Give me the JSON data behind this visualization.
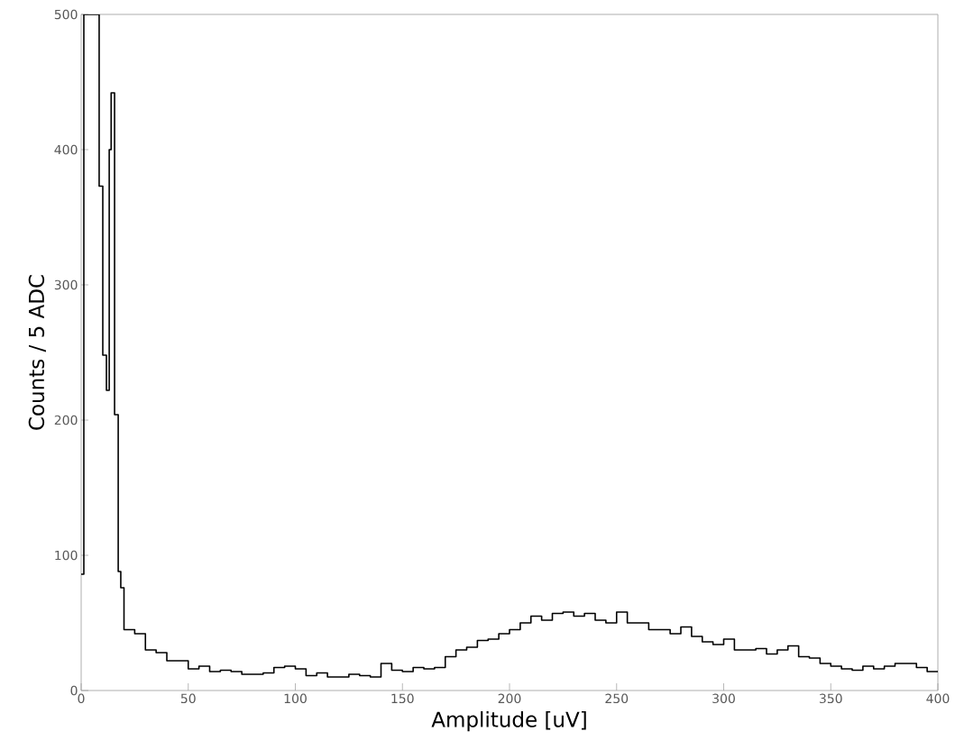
{
  "chart_data": {
    "type": "histogram",
    "xlabel": "Amplitude [uV]",
    "ylabel": "Counts / 5 ADC",
    "color": "#000000",
    "bins": [
      0,
      1.25,
      8.4,
      10.1,
      11.8,
      13.1,
      14,
      15.6,
      17.3,
      18.5,
      20,
      25,
      30,
      35,
      40,
      45,
      50,
      55,
      60,
      65,
      70,
      75,
      80,
      85,
      90,
      95,
      100,
      105,
      110,
      115,
      120,
      125,
      130,
      135,
      140,
      145,
      150,
      155,
      160,
      165,
      170,
      175,
      180,
      185,
      190,
      195,
      200,
      205,
      210,
      215,
      220,
      225,
      230,
      235,
      240,
      245,
      250,
      255,
      260,
      265,
      270,
      275,
      280,
      285,
      290,
      295,
      300,
      305,
      310,
      315,
      320,
      325,
      330,
      335,
      340,
      345,
      350,
      355,
      360,
      365,
      370,
      375,
      380,
      385,
      390,
      395,
      400
    ],
    "values": [
      86,
      500,
      373,
      248,
      222,
      400,
      442,
      204,
      88,
      76,
      45,
      42,
      30,
      28,
      22,
      22,
      16,
      18,
      14,
      15,
      14,
      12,
      12,
      13,
      17,
      18,
      16,
      11,
      13,
      10,
      10,
      12,
      11,
      10,
      20,
      15,
      14,
      17,
      16,
      17,
      25,
      30,
      32,
      37,
      38,
      42,
      45,
      50,
      55,
      52,
      57,
      58,
      55,
      57,
      52,
      50,
      58,
      50,
      50,
      45,
      45,
      42,
      47,
      40,
      36,
      34,
      38,
      30,
      30,
      31,
      27,
      30,
      33,
      25,
      24,
      20,
      18,
      16,
      15,
      18,
      16,
      18,
      20,
      20,
      17,
      14
    ],
    "xlim": [
      0,
      400
    ],
    "ylim": [
      0,
      500
    ],
    "xticks": [
      0,
      50,
      100,
      150,
      200,
      250,
      300,
      350,
      400
    ],
    "yticks": [
      0,
      100,
      200,
      300,
      400,
      500
    ],
    "grid": false
  }
}
